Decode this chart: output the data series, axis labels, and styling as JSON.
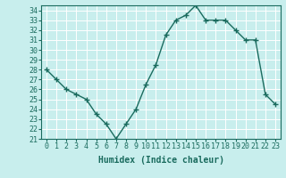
{
  "x": [
    0,
    1,
    2,
    3,
    4,
    5,
    6,
    7,
    8,
    9,
    10,
    11,
    12,
    13,
    14,
    15,
    16,
    17,
    18,
    19,
    20,
    21,
    22,
    23
  ],
  "y": [
    28.0,
    27.0,
    26.0,
    25.5,
    25.0,
    23.5,
    22.5,
    21.0,
    22.5,
    24.0,
    26.5,
    28.5,
    31.5,
    33.0,
    33.5,
    34.5,
    33.0,
    33.0,
    33.0,
    32.0,
    31.0,
    31.0,
    25.5,
    24.5
  ],
  "line_color": "#1a6b5e",
  "marker": "+",
  "marker_color": "#1a6b5e",
  "background_color": "#c8eeed",
  "grid_color": "#ffffff",
  "xlabel": "Humidex (Indice chaleur)",
  "ylim": [
    21,
    34.5
  ],
  "xlim": [
    -0.5,
    23.5
  ],
  "yticks": [
    21,
    22,
    23,
    24,
    25,
    26,
    27,
    28,
    29,
    30,
    31,
    32,
    33,
    34
  ],
  "xticks": [
    0,
    1,
    2,
    3,
    4,
    5,
    6,
    7,
    8,
    9,
    10,
    11,
    12,
    13,
    14,
    15,
    16,
    17,
    18,
    19,
    20,
    21,
    22,
    23
  ],
  "tick_color": "#1a6b5e",
  "label_fontsize": 7,
  "tick_fontsize": 6,
  "linewidth": 1.0,
  "markersize": 4,
  "grid_linewidth": 0.7
}
